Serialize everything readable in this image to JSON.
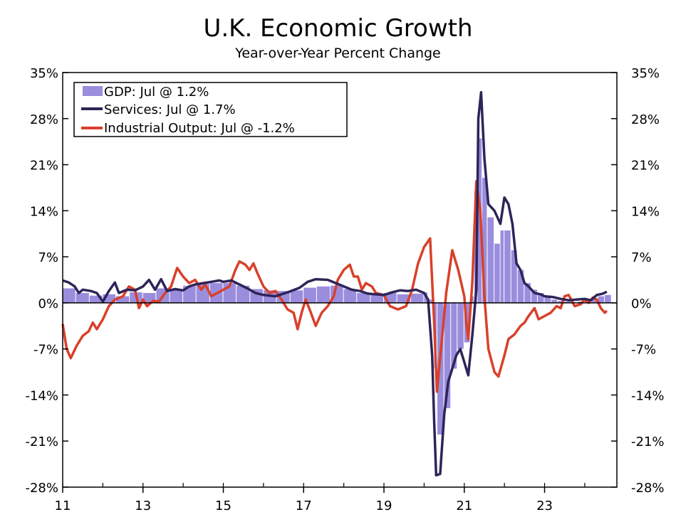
{
  "chart_data": {
    "type": "bar+line",
    "title": "U.K. Economic Growth",
    "subtitle": "Year-over-Year Percent Change",
    "ylim": [
      -28,
      35
    ],
    "yticks": [
      35,
      28,
      21,
      14,
      7,
      0,
      -7,
      -14,
      -21,
      -28
    ],
    "ytick_labels": [
      "35%",
      "28%",
      "21%",
      "14%",
      "7%",
      "0%",
      "-7%",
      "-14%",
      "-21%",
      "-28%"
    ],
    "xlim": [
      2011,
      2024.8
    ],
    "xticks": [
      2011,
      2013,
      2015,
      2017,
      2019,
      2021,
      2023
    ],
    "xtick_labels": [
      "11",
      "13",
      "15",
      "17",
      "19",
      "21",
      "23"
    ],
    "legend_position": "top-left",
    "series": [
      {
        "name": "GDP: Jul @ 1.2%",
        "kind": "bar",
        "color": "#9b8ddd",
        "points": [
          [
            2011.0,
            2.2
          ],
          [
            2011.33,
            1.5
          ],
          [
            2011.67,
            1.1
          ],
          [
            2012.0,
            1.3
          ],
          [
            2012.33,
            1.0
          ],
          [
            2012.67,
            1.6
          ],
          [
            2013.0,
            1.5
          ],
          [
            2013.33,
            2.2
          ],
          [
            2013.67,
            2.1
          ],
          [
            2014.0,
            2.6
          ],
          [
            2014.33,
            2.9
          ],
          [
            2014.67,
            3.0
          ],
          [
            2015.0,
            3.0
          ],
          [
            2015.33,
            2.6
          ],
          [
            2015.67,
            2.1
          ],
          [
            2016.0,
            1.9
          ],
          [
            2016.33,
            1.8
          ],
          [
            2016.67,
            1.9
          ],
          [
            2017.0,
            2.3
          ],
          [
            2017.33,
            2.5
          ],
          [
            2017.67,
            2.6
          ],
          [
            2018.0,
            2.1
          ],
          [
            2018.33,
            1.5
          ],
          [
            2018.67,
            1.4
          ],
          [
            2019.0,
            1.5
          ],
          [
            2019.33,
            1.3
          ],
          [
            2019.67,
            1.4
          ],
          [
            2020.0,
            1.6
          ],
          [
            2020.1,
            0.5
          ],
          [
            2020.25,
            -10
          ],
          [
            2020.33,
            -20
          ],
          [
            2020.5,
            -16
          ],
          [
            2020.67,
            -10
          ],
          [
            2020.83,
            -7
          ],
          [
            2021.0,
            -6
          ],
          [
            2021.15,
            1
          ],
          [
            2021.25,
            17
          ],
          [
            2021.33,
            25
          ],
          [
            2021.45,
            19
          ],
          [
            2021.58,
            13
          ],
          [
            2021.75,
            9
          ],
          [
            2021.9,
            11
          ],
          [
            2022.0,
            11
          ],
          [
            2022.17,
            8
          ],
          [
            2022.33,
            5
          ],
          [
            2022.5,
            3
          ],
          [
            2022.67,
            2
          ],
          [
            2022.83,
            1.5
          ],
          [
            2023.0,
            0.8
          ],
          [
            2023.17,
            0.5
          ],
          [
            2023.33,
            0.3
          ],
          [
            2023.5,
            0.2
          ],
          [
            2023.67,
            0.1
          ],
          [
            2023.83,
            0.2
          ],
          [
            2024.0,
            0.3
          ],
          [
            2024.17,
            0.6
          ],
          [
            2024.33,
            1.0
          ],
          [
            2024.5,
            1.2
          ]
        ]
      },
      {
        "name": "Services: Jul @ 1.7%",
        "kind": "line",
        "color": "#2e2458",
        "points": [
          [
            2011.0,
            3.4
          ],
          [
            2011.15,
            3.1
          ],
          [
            2011.3,
            2.5
          ],
          [
            2011.4,
            1.5
          ],
          [
            2011.5,
            2.0
          ],
          [
            2011.7,
            1.8
          ],
          [
            2011.85,
            1.5
          ],
          [
            2012.0,
            0.2
          ],
          [
            2012.15,
            1.8
          ],
          [
            2012.3,
            3.1
          ],
          [
            2012.4,
            1.5
          ],
          [
            2012.6,
            2.0
          ],
          [
            2012.8,
            1.9
          ],
          [
            2013.0,
            2.5
          ],
          [
            2013.15,
            3.5
          ],
          [
            2013.3,
            2.0
          ],
          [
            2013.45,
            3.6
          ],
          [
            2013.6,
            1.8
          ],
          [
            2013.8,
            2.1
          ],
          [
            2014.0,
            1.9
          ],
          [
            2014.15,
            2.5
          ],
          [
            2014.3,
            2.8
          ],
          [
            2014.5,
            3.0
          ],
          [
            2014.7,
            3.2
          ],
          [
            2014.9,
            3.4
          ],
          [
            2015.0,
            3.2
          ],
          [
            2015.2,
            3.4
          ],
          [
            2015.4,
            2.8
          ],
          [
            2015.6,
            2.2
          ],
          [
            2015.8,
            1.5
          ],
          [
            2016.0,
            1.2
          ],
          [
            2016.3,
            1.0
          ],
          [
            2016.6,
            1.6
          ],
          [
            2016.9,
            2.3
          ],
          [
            2017.1,
            3.2
          ],
          [
            2017.3,
            3.6
          ],
          [
            2017.6,
            3.5
          ],
          [
            2017.8,
            3.0
          ],
          [
            2018.0,
            2.5
          ],
          [
            2018.2,
            2.0
          ],
          [
            2018.4,
            1.8
          ],
          [
            2018.6,
            1.4
          ],
          [
            2018.8,
            1.3
          ],
          [
            2019.0,
            1.2
          ],
          [
            2019.2,
            1.6
          ],
          [
            2019.4,
            1.9
          ],
          [
            2019.6,
            1.8
          ],
          [
            2019.8,
            2.0
          ],
          [
            2020.0,
            1.5
          ],
          [
            2020.1,
            0.5
          ],
          [
            2020.2,
            -8
          ],
          [
            2020.25,
            -18
          ],
          [
            2020.3,
            -26.2
          ],
          [
            2020.4,
            -26
          ],
          [
            2020.5,
            -17
          ],
          [
            2020.6,
            -12
          ],
          [
            2020.7,
            -10
          ],
          [
            2020.8,
            -8
          ],
          [
            2020.9,
            -7
          ],
          [
            2021.0,
            -9
          ],
          [
            2021.1,
            -11
          ],
          [
            2021.2,
            -5
          ],
          [
            2021.3,
            2
          ],
          [
            2021.35,
            28
          ],
          [
            2021.42,
            32
          ],
          [
            2021.5,
            22
          ],
          [
            2021.6,
            15
          ],
          [
            2021.75,
            14
          ],
          [
            2021.9,
            12
          ],
          [
            2022.0,
            16
          ],
          [
            2022.1,
            15
          ],
          [
            2022.2,
            12
          ],
          [
            2022.3,
            6
          ],
          [
            2022.4,
            5
          ],
          [
            2022.5,
            3
          ],
          [
            2022.6,
            2.5
          ],
          [
            2022.75,
            1.5
          ],
          [
            2022.9,
            1.3
          ],
          [
            2023.0,
            1.0
          ],
          [
            2023.2,
            0.9
          ],
          [
            2023.4,
            0.6
          ],
          [
            2023.6,
            0.4
          ],
          [
            2023.8,
            0.5
          ],
          [
            2024.0,
            0.6
          ],
          [
            2024.15,
            0.4
          ],
          [
            2024.3,
            1.2
          ],
          [
            2024.45,
            1.4
          ],
          [
            2024.55,
            1.7
          ]
        ]
      },
      {
        "name": "Industrial Output: Jul @ -1.2%",
        "kind": "line",
        "color": "#d9402a",
        "points": [
          [
            2011.0,
            -3.2
          ],
          [
            2011.1,
            -7.0
          ],
          [
            2011.2,
            -8.4
          ],
          [
            2011.35,
            -6.5
          ],
          [
            2011.5,
            -5.0
          ],
          [
            2011.65,
            -4.3
          ],
          [
            2011.75,
            -3.0
          ],
          [
            2011.85,
            -4.0
          ],
          [
            2012.0,
            -2.5
          ],
          [
            2012.15,
            -0.5
          ],
          [
            2012.3,
            0.5
          ],
          [
            2012.5,
            1.0
          ],
          [
            2012.65,
            2.5
          ],
          [
            2012.8,
            2.0
          ],
          [
            2012.9,
            -0.8
          ],
          [
            2013.0,
            0.5
          ],
          [
            2013.1,
            -0.5
          ],
          [
            2013.25,
            0.3
          ],
          [
            2013.4,
            0.2
          ],
          [
            2013.55,
            1.5
          ],
          [
            2013.7,
            2.5
          ],
          [
            2013.85,
            5.3
          ],
          [
            2014.0,
            4.0
          ],
          [
            2014.15,
            3.0
          ],
          [
            2014.3,
            3.5
          ],
          [
            2014.45,
            2.0
          ],
          [
            2014.55,
            2.8
          ],
          [
            2014.7,
            1.0
          ],
          [
            2014.85,
            1.5
          ],
          [
            2015.0,
            2.0
          ],
          [
            2015.15,
            2.5
          ],
          [
            2015.3,
            5.0
          ],
          [
            2015.4,
            6.3
          ],
          [
            2015.55,
            5.8
          ],
          [
            2015.65,
            5.0
          ],
          [
            2015.75,
            6.0
          ],
          [
            2015.85,
            4.5
          ],
          [
            2016.0,
            2.5
          ],
          [
            2016.15,
            1.5
          ],
          [
            2016.3,
            1.8
          ],
          [
            2016.45,
            0.5
          ],
          [
            2016.6,
            -1.0
          ],
          [
            2016.75,
            -1.5
          ],
          [
            2016.85,
            -4.0
          ],
          [
            2016.95,
            -1.5
          ],
          [
            2017.05,
            0.5
          ],
          [
            2017.15,
            -1.0
          ],
          [
            2017.3,
            -3.5
          ],
          [
            2017.45,
            -1.5
          ],
          [
            2017.6,
            -0.5
          ],
          [
            2017.75,
            1.0
          ],
          [
            2017.85,
            3.5
          ],
          [
            2018.0,
            5.0
          ],
          [
            2018.15,
            5.8
          ],
          [
            2018.25,
            4.0
          ],
          [
            2018.35,
            4.0
          ],
          [
            2018.45,
            2.0
          ],
          [
            2018.55,
            3.0
          ],
          [
            2018.7,
            2.5
          ],
          [
            2018.8,
            1.5
          ],
          [
            2019.0,
            1.2
          ],
          [
            2019.15,
            -0.5
          ],
          [
            2019.35,
            -1.0
          ],
          [
            2019.55,
            -0.5
          ],
          [
            2019.7,
            2.0
          ],
          [
            2019.85,
            6.0
          ],
          [
            2020.0,
            8.5
          ],
          [
            2020.15,
            9.8
          ],
          [
            2020.25,
            -3
          ],
          [
            2020.32,
            -13.5
          ],
          [
            2020.45,
            -5
          ],
          [
            2020.55,
            1.5
          ],
          [
            2020.7,
            8.0
          ],
          [
            2020.85,
            5.0
          ],
          [
            2021.0,
            1.0
          ],
          [
            2021.05,
            -3
          ],
          [
            2021.1,
            -5.5
          ],
          [
            2021.2,
            3
          ],
          [
            2021.3,
            18.5
          ],
          [
            2021.4,
            14
          ],
          [
            2021.5,
            1
          ],
          [
            2021.6,
            -7
          ],
          [
            2021.75,
            -10.5
          ],
          [
            2021.85,
            -11.2
          ],
          [
            2022.0,
            -8
          ],
          [
            2022.1,
            -5.5
          ],
          [
            2022.25,
            -4.8
          ],
          [
            2022.4,
            -3.5
          ],
          [
            2022.5,
            -3.0
          ],
          [
            2022.6,
            -2.0
          ],
          [
            2022.75,
            -0.8
          ],
          [
            2022.85,
            -2.5
          ],
          [
            2023.0,
            -2.0
          ],
          [
            2023.15,
            -1.5
          ],
          [
            2023.3,
            -0.5
          ],
          [
            2023.4,
            -0.8
          ],
          [
            2023.5,
            1.0
          ],
          [
            2023.6,
            1.2
          ],
          [
            2023.75,
            -0.5
          ],
          [
            2023.9,
            -0.2
          ],
          [
            2024.0,
            0.5
          ],
          [
            2024.1,
            0.0
          ],
          [
            2024.2,
            0.8
          ],
          [
            2024.3,
            0.5
          ],
          [
            2024.4,
            -0.8
          ],
          [
            2024.5,
            -1.5
          ],
          [
            2024.55,
            -1.2
          ]
        ]
      }
    ]
  }
}
